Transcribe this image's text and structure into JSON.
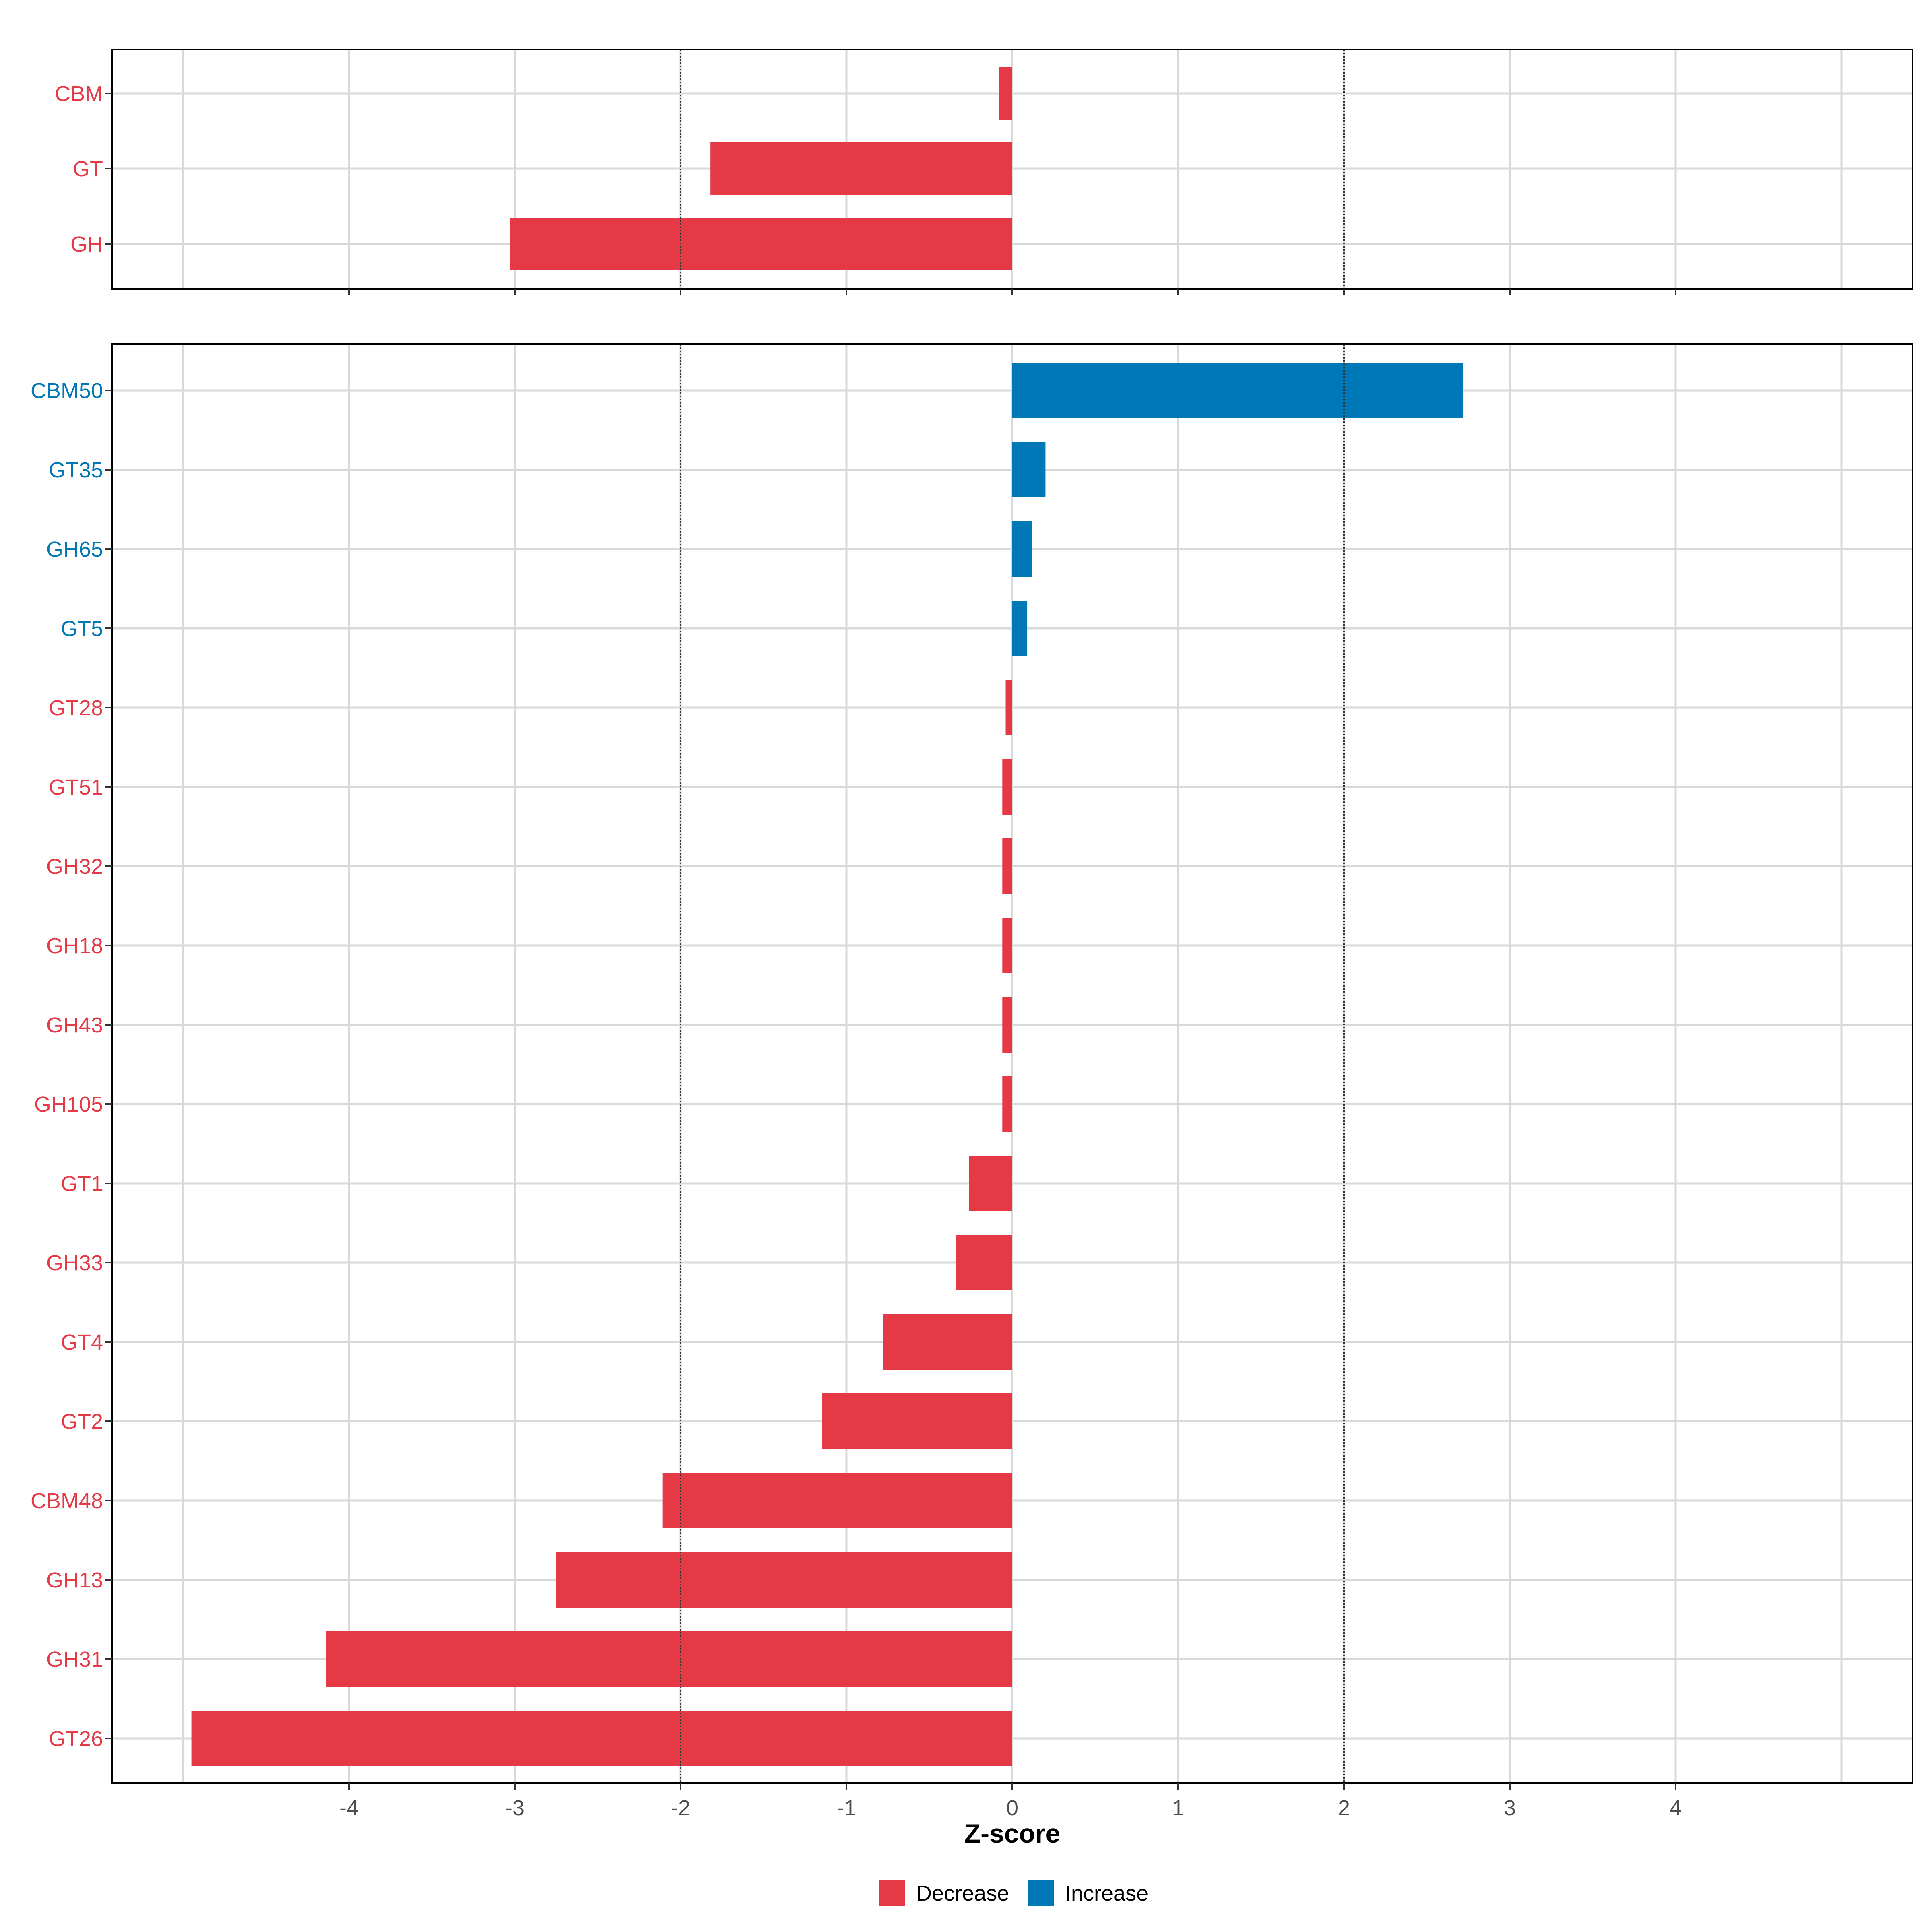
{
  "chart_data": [
    {
      "type": "bar",
      "orientation": "horizontal",
      "panel": "top",
      "categories": [
        "CBM",
        "GT",
        "GH"
      ],
      "values": [
        -0.08,
        -1.82,
        -3.03
      ],
      "groups": [
        "Decrease",
        "Decrease",
        "Decrease"
      ],
      "xlim": [
        -5.45,
        5.45
      ],
      "reference_lines": [
        -2,
        2
      ],
      "grid": true
    },
    {
      "type": "bar",
      "orientation": "horizontal",
      "panel": "bottom",
      "categories": [
        "CBM50",
        "GT35",
        "GH65",
        "GT5",
        "GT28",
        "GT51",
        "GH32",
        "GH18",
        "GH43",
        "GH105",
        "GT1",
        "GH33",
        "GT4",
        "GT2",
        "CBM48",
        "GH13",
        "GH31",
        "GT26"
      ],
      "values": [
        2.72,
        0.2,
        0.12,
        0.09,
        -0.04,
        -0.06,
        -0.06,
        -0.06,
        -0.06,
        -0.06,
        -0.26,
        -0.34,
        -0.78,
        -1.15,
        -2.11,
        -2.75,
        -4.14,
        -4.95
      ],
      "groups": [
        "Increase",
        "Increase",
        "Increase",
        "Increase",
        "Decrease",
        "Decrease",
        "Decrease",
        "Decrease",
        "Decrease",
        "Decrease",
        "Decrease",
        "Decrease",
        "Decrease",
        "Decrease",
        "Decrease",
        "Decrease",
        "Decrease",
        "Decrease"
      ],
      "xlim": [
        -5.45,
        5.45
      ],
      "reference_lines": [
        -2,
        2
      ],
      "grid": true,
      "xlabel": "Z-score",
      "xticks": [
        -4,
        -3,
        -2,
        -1,
        0,
        1,
        2,
        3,
        4
      ],
      "xtick_labels": [
        "-4",
        "-3",
        "-2",
        "-1",
        "0",
        "1",
        "2",
        "3",
        "4"
      ]
    }
  ],
  "legend": {
    "placement": "bottom",
    "items": [
      {
        "label": "Decrease",
        "color": "#e63946"
      },
      {
        "label": "Increase",
        "color": "#0077b6"
      }
    ]
  },
  "colors": {
    "Decrease": "#e63946",
    "Increase": "#0077b6",
    "grid": "#d9d9d9",
    "frame": "#000000",
    "reference_line": "#333333",
    "tick_text": "#4d4d4d"
  }
}
